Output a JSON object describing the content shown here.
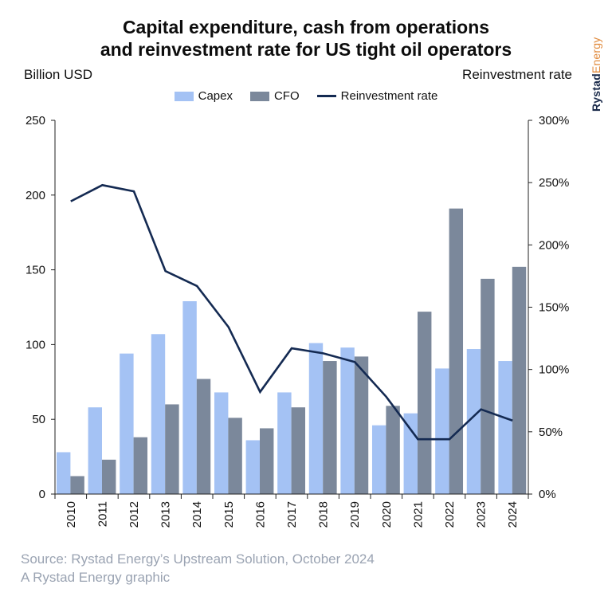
{
  "header": {
    "title_line1": "Capital expenditure, cash from operations",
    "title_line2": "and reinvestment rate for US tight oil operators"
  },
  "brand": {
    "part1": "Rystad",
    "part2": "Energy"
  },
  "footer": {
    "source": "Source: Rystad Energy’s Upstream Solution, October 2024",
    "credit": "A Rystad Energy graphic"
  },
  "chart_data": {
    "type": "bar",
    "ylabel": "Billion USD",
    "y2label": "Reinvestment rate",
    "ylim": [
      0,
      250
    ],
    "y2lim": [
      0,
      300
    ],
    "yticks": [
      "0",
      "50",
      "100",
      "150",
      "200",
      "250"
    ],
    "y2ticks": [
      "0%",
      "50%",
      "100%",
      "150%",
      "200%",
      "250%",
      "300%"
    ],
    "grid": false,
    "legend_position": "top-center",
    "categories": [
      "2010",
      "2011",
      "2012",
      "2013",
      "2014",
      "2015",
      "2016",
      "2017",
      "2018",
      "2019",
      "2020",
      "2021",
      "2022",
      "2023",
      "2024"
    ],
    "series": [
      {
        "name": "Capex",
        "kind": "bar",
        "axis": "left",
        "color": "#a4c2f4",
        "values": [
          28,
          58,
          94,
          107,
          129,
          68,
          36,
          68,
          101,
          98,
          46,
          54,
          84,
          97,
          89
        ]
      },
      {
        "name": "CFO",
        "kind": "bar",
        "axis": "left",
        "color": "#7b889b",
        "values": [
          12,
          23,
          38,
          60,
          77,
          51,
          44,
          58,
          89,
          92,
          59,
          122,
          191,
          144,
          152
        ]
      },
      {
        "name": "Reinvestment rate",
        "kind": "line",
        "axis": "right",
        "color": "#142a52",
        "values": [
          235,
          248,
          243,
          179,
          167,
          134,
          82,
          117,
          113,
          106,
          78,
          44,
          44,
          68,
          59
        ]
      }
    ]
  }
}
